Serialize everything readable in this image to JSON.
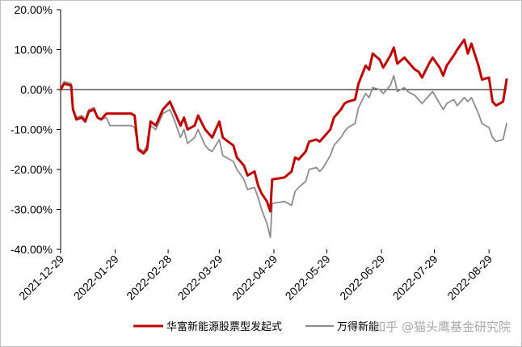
{
  "chart_data": {
    "type": "line",
    "title": "",
    "xlabel": "",
    "ylabel": "",
    "ylim": [
      -40,
      20
    ],
    "y_ticks": [
      "20.00%",
      "10.00%",
      "0.00%",
      "-10.00%",
      "-20.00%",
      "-30.00%",
      "-40.00%"
    ],
    "x_ticks": [
      "2021-12-29",
      "2022-01-29",
      "2022-02-28",
      "2022-03-29",
      "2022-04-29",
      "2022-05-29",
      "2022-06-29",
      "2022-07-29",
      "2022-08-29"
    ],
    "grid": false,
    "legend_position": "bottom",
    "series": [
      {
        "name": "华富新能源股票型发起式",
        "color": "#c00000",
        "values": [
          [
            "2021-12-29",
            0.0
          ],
          [
            "2021-12-31",
            1.5
          ],
          [
            "2022-01-04",
            1.0
          ],
          [
            "2022-01-05",
            -5.0
          ],
          [
            "2022-01-07",
            -7.5
          ],
          [
            "2022-01-10",
            -7.0
          ],
          [
            "2022-01-12",
            -8.0
          ],
          [
            "2022-01-14",
            -5.5
          ],
          [
            "2022-01-17",
            -5.0
          ],
          [
            "2022-01-19",
            -7.0
          ],
          [
            "2022-01-21",
            -7.5
          ],
          [
            "2022-01-24",
            -6.0
          ],
          [
            "2022-01-26",
            -6.0
          ],
          [
            "2022-01-28",
            -6.0
          ],
          [
            "2022-02-07",
            -6.0
          ],
          [
            "2022-02-09",
            -6.5
          ],
          [
            "2022-02-11",
            -15.0
          ],
          [
            "2022-02-14",
            -16.0
          ],
          [
            "2022-02-16",
            -15.0
          ],
          [
            "2022-02-18",
            -8.0
          ],
          [
            "2022-02-21",
            -9.0
          ],
          [
            "2022-02-23",
            -7.0
          ],
          [
            "2022-02-25",
            -5.0
          ],
          [
            "2022-03-01",
            -3.0
          ],
          [
            "2022-03-03",
            -5.0
          ],
          [
            "2022-03-07",
            -9.0
          ],
          [
            "2022-03-09",
            -7.0
          ],
          [
            "2022-03-11",
            -10.0
          ],
          [
            "2022-03-15",
            -9.0
          ],
          [
            "2022-03-17",
            -6.5
          ],
          [
            "2022-03-21",
            -10.0
          ],
          [
            "2022-03-23",
            -11.0
          ],
          [
            "2022-03-25",
            -12.0
          ],
          [
            "2022-03-29",
            -8.0
          ],
          [
            "2022-03-31",
            -12.0
          ],
          [
            "2022-04-06",
            -14.0
          ],
          [
            "2022-04-08",
            -17.0
          ],
          [
            "2022-04-12",
            -19.0
          ],
          [
            "2022-04-14",
            -21.5
          ],
          [
            "2022-04-18",
            -20.5
          ],
          [
            "2022-04-20",
            -24.0
          ],
          [
            "2022-04-22",
            -26.0
          ],
          [
            "2022-04-25",
            -28.0
          ],
          [
            "2022-04-27",
            -30.5
          ],
          [
            "2022-04-28",
            -22.5
          ],
          [
            "2022-05-05",
            -22.0
          ],
          [
            "2022-05-09",
            -20.5
          ],
          [
            "2022-05-11",
            -17.0
          ],
          [
            "2022-05-13",
            -17.5
          ],
          [
            "2022-05-17",
            -15.5
          ],
          [
            "2022-05-19",
            -13.0
          ],
          [
            "2022-05-23",
            -12.5
          ],
          [
            "2022-05-25",
            -13.0
          ],
          [
            "2022-05-27",
            -12.0
          ],
          [
            "2022-05-31",
            -10.0
          ],
          [
            "2022-06-02",
            -7.0
          ],
          [
            "2022-06-06",
            -5.0
          ],
          [
            "2022-06-08",
            -3.5
          ],
          [
            "2022-06-10",
            -3.0
          ],
          [
            "2022-06-14",
            -2.5
          ],
          [
            "2022-06-16",
            1.5
          ],
          [
            "2022-06-20",
            6.0
          ],
          [
            "2022-06-22",
            5.0
          ],
          [
            "2022-06-24",
            9.0
          ],
          [
            "2022-06-28",
            7.5
          ],
          [
            "2022-06-30",
            5.5
          ],
          [
            "2022-07-04",
            8.5
          ],
          [
            "2022-07-06",
            10.5
          ],
          [
            "2022-07-08",
            6.5
          ],
          [
            "2022-07-12",
            8.0
          ],
          [
            "2022-07-14",
            7.0
          ],
          [
            "2022-07-18",
            5.0
          ],
          [
            "2022-07-20",
            4.5
          ],
          [
            "2022-07-22",
            3.0
          ],
          [
            "2022-07-26",
            6.5
          ],
          [
            "2022-07-28",
            8.0
          ],
          [
            "2022-08-01",
            5.5
          ],
          [
            "2022-08-03",
            3.5
          ],
          [
            "2022-08-05",
            6.0
          ],
          [
            "2022-08-09",
            8.5
          ],
          [
            "2022-08-11",
            10.0
          ],
          [
            "2022-08-15",
            12.5
          ],
          [
            "2022-08-17",
            9.0
          ],
          [
            "2022-08-19",
            11.5
          ],
          [
            "2022-08-23",
            6.0
          ],
          [
            "2022-08-25",
            2.5
          ],
          [
            "2022-08-29",
            3.0
          ],
          [
            "2022-08-31",
            -3.0
          ],
          [
            "2022-09-02",
            -4.0
          ],
          [
            "2022-09-06",
            -3.0
          ],
          [
            "2022-09-08",
            2.5
          ]
        ]
      },
      {
        "name": "万得新能",
        "color": "#8c8c8c",
        "values": [
          [
            "2021-12-29",
            0.0
          ],
          [
            "2021-12-31",
            2.0
          ],
          [
            "2022-01-04",
            1.5
          ],
          [
            "2022-01-05",
            -4.5
          ],
          [
            "2022-01-07",
            -7.0
          ],
          [
            "2022-01-10",
            -6.5
          ],
          [
            "2022-01-12",
            -7.5
          ],
          [
            "2022-01-14",
            -5.0
          ],
          [
            "2022-01-17",
            -4.5
          ],
          [
            "2022-01-19",
            -7.0
          ],
          [
            "2022-01-21",
            -7.5
          ],
          [
            "2022-01-24",
            -7.0
          ],
          [
            "2022-01-26",
            -9.0
          ],
          [
            "2022-01-28",
            -9.0
          ],
          [
            "2022-02-07",
            -9.0
          ],
          [
            "2022-02-09",
            -9.5
          ],
          [
            "2022-02-11",
            -14.5
          ],
          [
            "2022-02-14",
            -15.5
          ],
          [
            "2022-02-16",
            -14.0
          ],
          [
            "2022-02-18",
            -9.0
          ],
          [
            "2022-02-21",
            -10.0
          ],
          [
            "2022-02-23",
            -8.0
          ],
          [
            "2022-02-25",
            -6.0
          ],
          [
            "2022-03-01",
            -5.0
          ],
          [
            "2022-03-03",
            -7.0
          ],
          [
            "2022-03-07",
            -12.0
          ],
          [
            "2022-03-09",
            -10.0
          ],
          [
            "2022-03-11",
            -13.5
          ],
          [
            "2022-03-15",
            -12.0
          ],
          [
            "2022-03-17",
            -10.0
          ],
          [
            "2022-03-21",
            -14.0
          ],
          [
            "2022-03-23",
            -15.0
          ],
          [
            "2022-03-25",
            -15.5
          ],
          [
            "2022-03-29",
            -12.5
          ],
          [
            "2022-03-31",
            -16.5
          ],
          [
            "2022-04-06",
            -18.0
          ],
          [
            "2022-04-08",
            -20.0
          ],
          [
            "2022-04-12",
            -22.5
          ],
          [
            "2022-04-14",
            -25.0
          ],
          [
            "2022-04-18",
            -24.5
          ],
          [
            "2022-04-20",
            -27.0
          ],
          [
            "2022-04-22",
            -30.0
          ],
          [
            "2022-04-25",
            -33.5
          ],
          [
            "2022-04-27",
            -37.0
          ],
          [
            "2022-04-28",
            -28.5
          ],
          [
            "2022-05-05",
            -28.0
          ],
          [
            "2022-05-09",
            -29.0
          ],
          [
            "2022-05-11",
            -25.5
          ],
          [
            "2022-05-13",
            -24.5
          ],
          [
            "2022-05-17",
            -23.0
          ],
          [
            "2022-05-19",
            -20.0
          ],
          [
            "2022-05-23",
            -19.5
          ],
          [
            "2022-05-25",
            -20.5
          ],
          [
            "2022-05-27",
            -19.5
          ],
          [
            "2022-05-31",
            -16.5
          ],
          [
            "2022-06-02",
            -14.0
          ],
          [
            "2022-06-06",
            -12.0
          ],
          [
            "2022-06-08",
            -10.5
          ],
          [
            "2022-06-10",
            -9.5
          ],
          [
            "2022-06-14",
            -8.5
          ],
          [
            "2022-06-16",
            -4.5
          ],
          [
            "2022-06-20",
            -1.0
          ],
          [
            "2022-06-22",
            -2.0
          ],
          [
            "2022-06-24",
            0.5
          ],
          [
            "2022-06-28",
            0.0
          ],
          [
            "2022-06-30",
            -1.0
          ],
          [
            "2022-07-04",
            1.0
          ],
          [
            "2022-07-06",
            3.5
          ],
          [
            "2022-07-08",
            -0.5
          ],
          [
            "2022-07-12",
            0.5
          ],
          [
            "2022-07-14",
            -0.5
          ],
          [
            "2022-07-18",
            -1.5
          ],
          [
            "2022-07-20",
            -2.5
          ],
          [
            "2022-07-22",
            -3.5
          ],
          [
            "2022-07-26",
            -1.5
          ],
          [
            "2022-07-28",
            -0.5
          ],
          [
            "2022-08-01",
            -3.5
          ],
          [
            "2022-08-03",
            -5.0
          ],
          [
            "2022-08-05",
            -3.5
          ],
          [
            "2022-08-09",
            -2.5
          ],
          [
            "2022-08-11",
            -4.0
          ],
          [
            "2022-08-15",
            -2.0
          ],
          [
            "2022-08-17",
            -3.0
          ],
          [
            "2022-08-19",
            -2.0
          ],
          [
            "2022-08-23",
            -6.0
          ],
          [
            "2022-08-25",
            -8.5
          ],
          [
            "2022-08-29",
            -9.5
          ],
          [
            "2022-08-31",
            -12.0
          ],
          [
            "2022-09-02",
            -13.0
          ],
          [
            "2022-09-06",
            -12.5
          ],
          [
            "2022-09-08",
            -8.5
          ]
        ]
      }
    ]
  },
  "watermark": "知乎 @猫头鹰基金研究院"
}
